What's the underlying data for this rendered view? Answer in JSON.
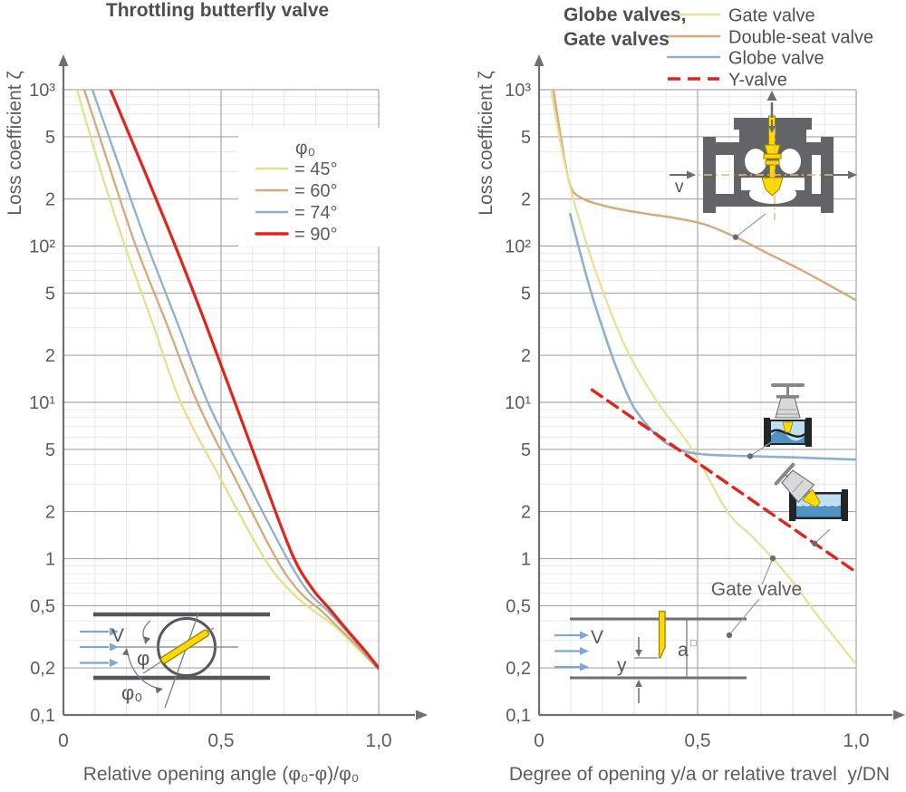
{
  "chart_data": [
    {
      "key": "left",
      "type": "line",
      "title": "Throttling butterfly valve",
      "xlabel": "Relative opening angle (φ₀-φ)/φ₀",
      "ylabel": "Loss coefficient ζ",
      "x_axis": {
        "min": 0,
        "max": 1,
        "ticks": [
          {
            "v": 0,
            "label": "0"
          },
          {
            "v": 0.5,
            "label": "0,5"
          },
          {
            "v": 1,
            "label": "1,0"
          }
        ]
      },
      "y_axis": {
        "scale": "log",
        "min": 0.1,
        "max": 1000,
        "ticks": [
          {
            "v": 1000,
            "label": "10³"
          },
          {
            "v": 500,
            "label": "5"
          },
          {
            "v": 200,
            "label": "2"
          },
          {
            "v": 100,
            "label": "10²"
          },
          {
            "v": 50,
            "label": "5"
          },
          {
            "v": 20,
            "label": "2"
          },
          {
            "v": 10,
            "label": "10¹"
          },
          {
            "v": 5,
            "label": "5"
          },
          {
            "v": 2,
            "label": "2"
          },
          {
            "v": 1,
            "label": "1"
          },
          {
            "v": 0.5,
            "label": "0,5"
          },
          {
            "v": 0.2,
            "label": "0,2"
          },
          {
            "v": 0.1,
            "label": "0,1"
          }
        ]
      },
      "grid": true,
      "legend": {
        "title": "φ₀",
        "position": "inside-upper-right"
      },
      "series": [
        {
          "name": "= 45°",
          "color": "#e3e18c",
          "width": 2.3,
          "points": [
            [
              0.043,
              1000
            ],
            [
              0.115,
              320
            ],
            [
              0.195,
              100
            ],
            [
              0.283,
              32
            ],
            [
              0.372,
              10
            ],
            [
              0.5,
              3.2
            ],
            [
              0.638,
              1
            ],
            [
              0.72,
              0.62
            ],
            [
              0.79,
              0.47
            ],
            [
              0.86,
              0.37
            ],
            [
              0.93,
              0.27
            ],
            [
              1,
              0.195
            ]
          ]
        },
        {
          "name": "= 60°",
          "color": "#d7a979",
          "width": 2.3,
          "points": [
            [
              0.066,
              1000
            ],
            [
              0.146,
              320
            ],
            [
              0.23,
              100
            ],
            [
              0.327,
              32
            ],
            [
              0.425,
              10
            ],
            [
              0.55,
              3.1
            ],
            [
              0.675,
              1
            ],
            [
              0.75,
              0.61
            ],
            [
              0.82,
              0.46
            ],
            [
              0.88,
              0.35
            ],
            [
              0.94,
              0.265
            ],
            [
              1,
              0.195
            ]
          ]
        },
        {
          "name": "= 74°",
          "color": "#8fb0cd",
          "width": 2.3,
          "points": [
            [
              0.092,
              1000
            ],
            [
              0.178,
              320
            ],
            [
              0.267,
              100
            ],
            [
              0.362,
              32
            ],
            [
              0.458,
              10
            ],
            [
              0.585,
              3.05
            ],
            [
              0.71,
              1
            ],
            [
              0.778,
              0.61
            ],
            [
              0.838,
              0.465
            ],
            [
              0.9,
              0.34
            ],
            [
              0.95,
              0.26
            ],
            [
              1,
              0.195
            ]
          ]
        },
        {
          "name": "= 90°",
          "color": "#e1251b",
          "width": 3.2,
          "points": [
            [
              0.149,
              1000
            ],
            [
              0.252,
              320
            ],
            [
              0.355,
              100
            ],
            [
              0.448,
              33
            ],
            [
              0.54,
              10.5
            ],
            [
              0.635,
              3.2
            ],
            [
              0.727,
              1.05
            ],
            [
              0.79,
              0.64
            ],
            [
              0.845,
              0.475
            ],
            [
              0.905,
              0.34
            ],
            [
              0.955,
              0.26
            ],
            [
              1,
              0.2
            ]
          ]
        }
      ],
      "inset_labels": {
        "flow": "V",
        "phi": "φ",
        "phi0": "φ₀"
      }
    },
    {
      "key": "right",
      "type": "line",
      "title_lines": [
        "Globe valves,",
        "Gate valves"
      ],
      "xlabel": "Degree of opening y/a or relative travel  y/DN",
      "ylabel": "Loss coefficient ζ",
      "x_axis": {
        "min": 0,
        "max": 1,
        "ticks": [
          {
            "v": 0,
            "label": "0"
          },
          {
            "v": 0.5,
            "label": "0,5"
          },
          {
            "v": 1,
            "label": "1,0"
          }
        ]
      },
      "y_axis": {
        "scale": "log",
        "min": 0.1,
        "max": 1000,
        "ticks": [
          {
            "v": 1000,
            "label": "10³"
          },
          {
            "v": 500,
            "label": "5"
          },
          {
            "v": 200,
            "label": "2"
          },
          {
            "v": 100,
            "label": "10²"
          },
          {
            "v": 50,
            "label": "5"
          },
          {
            "v": 20,
            "label": "2"
          },
          {
            "v": 10,
            "label": "10¹"
          },
          {
            "v": 5,
            "label": "5"
          },
          {
            "v": 2,
            "label": "2"
          },
          {
            "v": 1,
            "label": "1"
          },
          {
            "v": 0.5,
            "label": "0,5"
          },
          {
            "v": 0.2,
            "label": "0,2"
          },
          {
            "v": 0.1,
            "label": "0,1"
          }
        ]
      },
      "grid": true,
      "legend": {
        "position": "top-right"
      },
      "series": [
        {
          "name": "Gate valve",
          "color": "#e6e29a",
          "width": 2.3,
          "points": [
            [
              0.037,
              1000
            ],
            [
              0.07,
              430
            ],
            [
              0.1,
              230
            ],
            [
              0.152,
              100
            ],
            [
              0.21,
              46
            ],
            [
              0.28,
              21
            ],
            [
              0.374,
              10
            ],
            [
              0.483,
              5
            ],
            [
              0.594,
              2
            ],
            [
              0.67,
              1.4
            ],
            [
              0.738,
              1
            ],
            [
              0.81,
              0.67
            ],
            [
              0.87,
              0.455
            ],
            [
              1,
              0.21
            ]
          ]
        },
        {
          "name": "Double-seat valve",
          "color": "#d7a979",
          "width": 2.4,
          "points": [
            [
              0.045,
              1000
            ],
            [
              0.07,
              480
            ],
            [
              0.098,
              245
            ],
            [
              0.14,
              200
            ],
            [
              0.22,
              178
            ],
            [
              0.32,
              163
            ],
            [
              0.42,
              152
            ],
            [
              0.52,
              138
            ],
            [
              0.62,
              114
            ],
            [
              0.72,
              90
            ],
            [
              0.84,
              68
            ],
            [
              1,
              45
            ]
          ]
        },
        {
          "name": "Globe valve",
          "color": "#8fb0cd",
          "width": 2.6,
          "points": [
            [
              0.098,
              160
            ],
            [
              0.124,
              100
            ],
            [
              0.16,
              54
            ],
            [
              0.2,
              30
            ],
            [
              0.24,
              17.5
            ],
            [
              0.285,
              10.5
            ],
            [
              0.31,
              8.6
            ],
            [
              0.35,
              6.8
            ],
            [
              0.4,
              5.5
            ],
            [
              0.46,
              4.85
            ],
            [
              0.52,
              4.65
            ],
            [
              0.62,
              4.55
            ],
            [
              0.8,
              4.45
            ],
            [
              1,
              4.3
            ]
          ]
        },
        {
          "name": "Y-valve",
          "color": "#e1251b",
          "width": 3.4,
          "dash": "13 8",
          "points": [
            [
              0.167,
              12
            ],
            [
              1,
              0.82
            ]
          ]
        }
      ],
      "annotations": {
        "curve_label": "Gate valve",
        "flow_small": "v",
        "dots": [
          {
            "series": 1,
            "x": 0.62
          },
          {
            "series": 2,
            "x": 0.666
          },
          {
            "series": 3,
            "x": 0.869
          },
          {
            "series": 0,
            "x": 0.737
          }
        ]
      },
      "inset_labels": {
        "flow": "V",
        "travel": "y",
        "width": "a",
        "width_sup": "□"
      }
    }
  ],
  "colors": {
    "title_text": "#4d4f53",
    "label_text": "#5b5d60",
    "axis": "#6e7072",
    "grid_major": "#a6a6a6",
    "grid_minor": "#e7e7e7",
    "inset_dark": "#55575b",
    "inset_medium": "#6e7072",
    "flow_arrow_blue": "#7fa8cc",
    "valve_yellow": "#ffd900",
    "valve_yellow_edge": "#9c8200",
    "centerline_orange": "#e9b876",
    "leader_gray": "#9a9a9a",
    "dot_gray": "#6b6d70"
  }
}
